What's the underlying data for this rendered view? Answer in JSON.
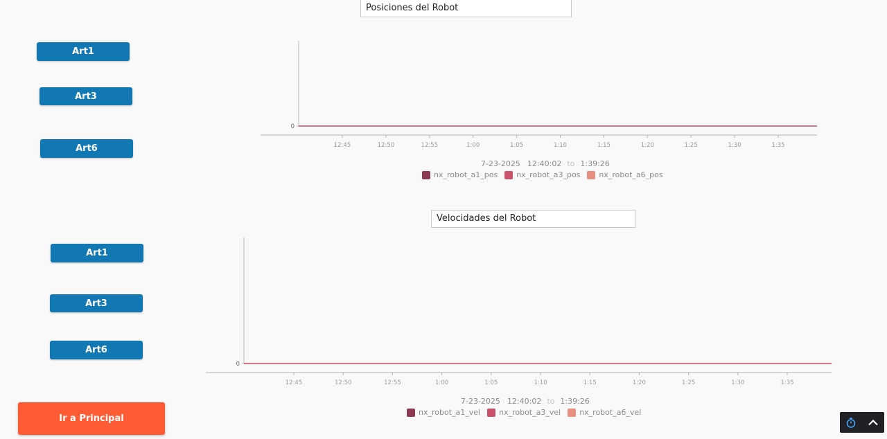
{
  "positions_panel": {
    "title": "Posiciones del Robot",
    "buttons": [
      "Art1",
      "Art3",
      "Art6"
    ],
    "chart": {
      "y_zero_label": "0",
      "x_ticks": [
        "12:45",
        "12:50",
        "12:55",
        "1:00",
        "1:05",
        "1:10",
        "1:15",
        "1:20",
        "1:25",
        "1:30",
        "1:35"
      ],
      "range_date": "7-23-2025",
      "range_start": "12:40:02",
      "range_to": "to",
      "range_end": "1:39:26",
      "legend": [
        {
          "label": "nx_robot_a1_pos",
          "color": "#8b3a52"
        },
        {
          "label": "nx_robot_a3_pos",
          "color": "#c9536a"
        },
        {
          "label": "nx_robot_a6_pos",
          "color": "#e89080"
        }
      ]
    }
  },
  "velocities_panel": {
    "title": "Velocidades del Robot",
    "buttons": [
      "Art1",
      "Art3",
      "Art6"
    ],
    "chart": {
      "y_zero_label": "0",
      "x_ticks": [
        "12:45",
        "12:50",
        "12:55",
        "1:00",
        "1:05",
        "1:10",
        "1:15",
        "1:20",
        "1:25",
        "1:30",
        "1:35"
      ],
      "range_date": "7-23-2025",
      "range_start": "12:40:02",
      "range_to": "to",
      "range_end": "1:39:26",
      "legend": [
        {
          "label": "nx_robot_a1_vel",
          "color": "#8b3a52"
        },
        {
          "label": "nx_robot_a3_vel",
          "color": "#c9536a"
        },
        {
          "label": "nx_robot_a6_vel",
          "color": "#e89080"
        }
      ]
    }
  },
  "main_button": {
    "label": "Ir a Principal"
  },
  "widget": {
    "timer_icon": "stopwatch-icon",
    "toggle_icon": "chevron-up-icon"
  },
  "colors": {
    "series_line": "#c9536a",
    "art_button": "#1278b3",
    "main_button": "#ff5b35"
  },
  "chart_data": [
    {
      "type": "line",
      "x": [
        "12:45",
        "12:50",
        "12:55",
        "1:00",
        "1:05",
        "1:10",
        "1:15",
        "1:20",
        "1:25",
        "1:30",
        "1:35"
      ],
      "series": [
        {
          "name": "nx_robot_a1_pos",
          "values": [
            0,
            0,
            0,
            0,
            0,
            0,
            0,
            0,
            0,
            0,
            0
          ]
        },
        {
          "name": "nx_robot_a3_pos",
          "values": [
            0,
            0,
            0,
            0,
            0,
            0,
            0,
            0,
            0,
            0,
            0
          ]
        },
        {
          "name": "nx_robot_a6_pos",
          "values": [
            0,
            0,
            0,
            0,
            0,
            0,
            0,
            0,
            0,
            0,
            0
          ]
        }
      ],
      "title": "Posiciones del Robot",
      "grid": false,
      "legend": "bottom"
    },
    {
      "type": "line",
      "x": [
        "12:45",
        "12:50",
        "12:55",
        "1:00",
        "1:05",
        "1:10",
        "1:15",
        "1:20",
        "1:25",
        "1:30",
        "1:35"
      ],
      "series": [
        {
          "name": "nx_robot_a1_vel",
          "values": [
            0,
            0,
            0,
            0,
            0,
            0,
            0,
            0,
            0,
            0,
            0
          ]
        },
        {
          "name": "nx_robot_a3_vel",
          "values": [
            0,
            0,
            0,
            0,
            0,
            0,
            0,
            0,
            0,
            0,
            0
          ]
        },
        {
          "name": "nx_robot_a6_vel",
          "values": [
            0,
            0,
            0,
            0,
            0,
            0,
            0,
            0,
            0,
            0,
            0
          ]
        }
      ],
      "title": "Velocidades del Robot",
      "grid": false,
      "legend": "bottom"
    }
  ]
}
